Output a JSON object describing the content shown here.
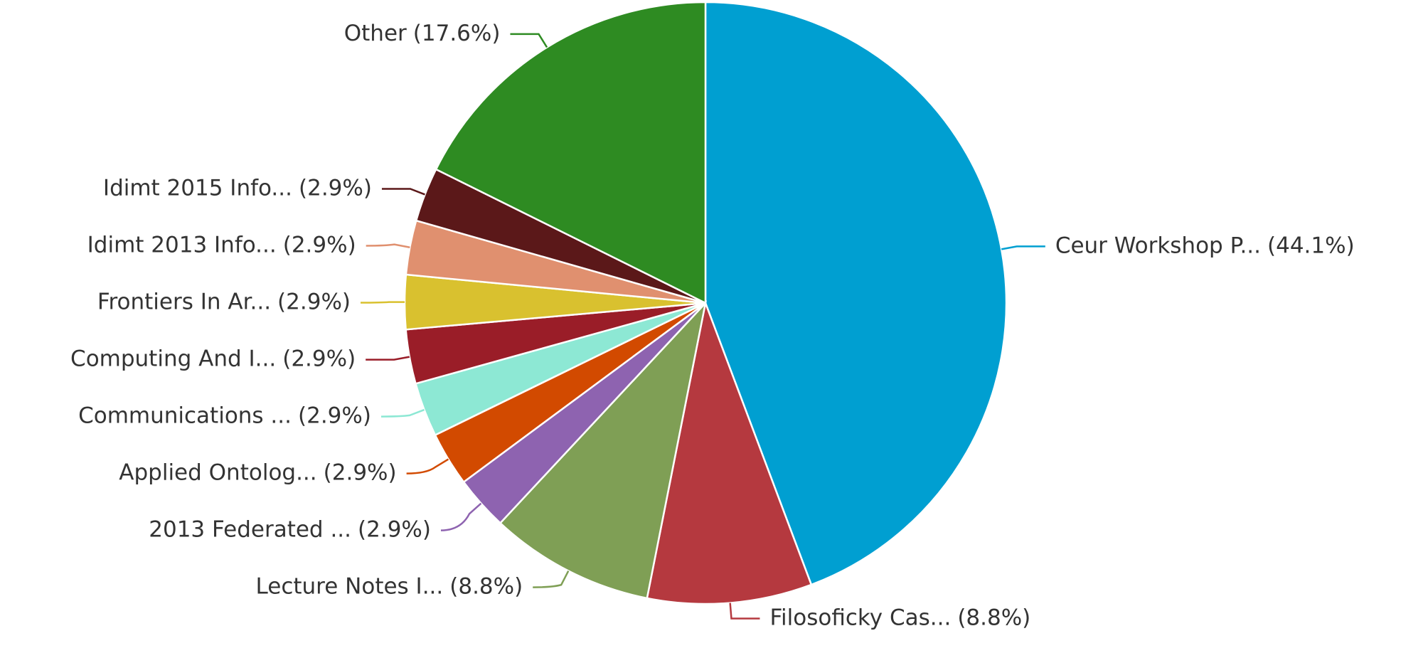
{
  "chart_data": {
    "type": "pie",
    "categories": [
      "Ceur Workshop P...",
      "Filosoficky Cas...",
      "Lecture Notes I...",
      "2013 Federated ...",
      "Applied Ontolog...",
      "Communications ...",
      "Computing And I...",
      "Frontiers In Ar...",
      "Idimt 2013 Info...",
      "Idimt 2015 Info...",
      "Other"
    ],
    "values": [
      44.1,
      8.8,
      8.8,
      2.9,
      2.9,
      2.9,
      2.9,
      2.9,
      2.9,
      2.9,
      17.6
    ],
    "value_labels": [
      "(44.1%)",
      "(8.8%)",
      "(8.8%)",
      "(2.9%)",
      "(2.9%)",
      "(2.9%)",
      "(2.9%)",
      "(2.9%)",
      "(2.9%)",
      "(2.9%)",
      "(17.6%)"
    ],
    "colors": [
      "#009fd1",
      "#b5393f",
      "#7f9f55",
      "#8e63b0",
      "#d24a00",
      "#8de8d4",
      "#9a1d28",
      "#d9c12f",
      "#e0906f",
      "#5b1819",
      "#2e8b22"
    ]
  }
}
